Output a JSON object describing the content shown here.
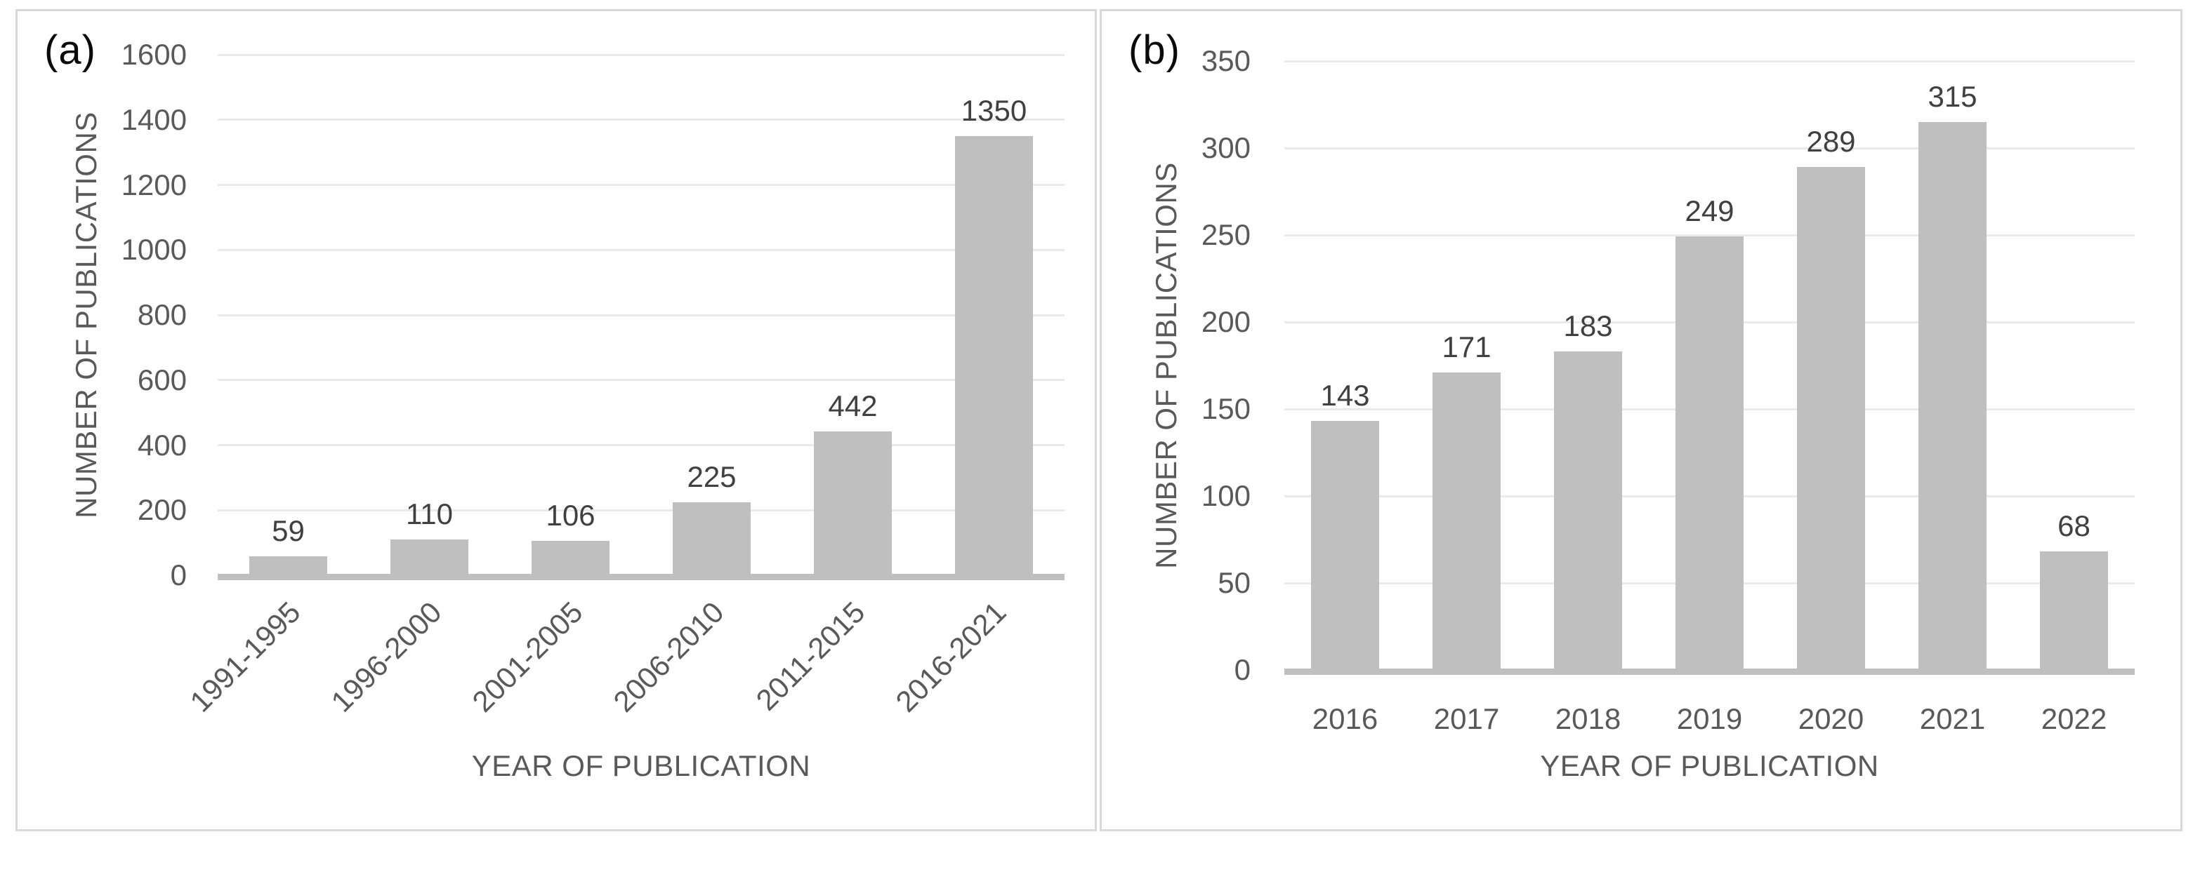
{
  "chart_data": [
    {
      "type": "bar",
      "panel_label": "(a)",
      "categories": [
        "1991-1995",
        "1996-2000",
        "2001-2005",
        "2006-2010",
        "2011-2015",
        "2016-2021"
      ],
      "values": [
        59,
        110,
        106,
        225,
        442,
        1350
      ],
      "title": "",
      "xlabel": "YEAR OF PUBLICATION",
      "ylabel": "NUMBER OF PUBLICATIONS",
      "ylim": [
        0,
        1600
      ],
      "ytick_step": 200,
      "yticks": [
        0,
        200,
        400,
        600,
        800,
        1000,
        1200,
        1400,
        1600
      ],
      "grid": true,
      "legend": "none",
      "category_label_rotation_deg": -45,
      "bar_color": "#bfbfbf"
    },
    {
      "type": "bar",
      "panel_label": "(b)",
      "categories": [
        "2016",
        "2017",
        "2018",
        "2019",
        "2020",
        "2021",
        "2022"
      ],
      "values": [
        143,
        171,
        183,
        249,
        289,
        315,
        68
      ],
      "title": "",
      "xlabel": "YEAR OF PUBLICATION",
      "ylabel": "NUMBER OF PUBLICATIONS",
      "ylim": [
        0,
        350
      ],
      "ytick_step": 50,
      "yticks": [
        0,
        50,
        100,
        150,
        200,
        250,
        300,
        350
      ],
      "grid": true,
      "legend": "none",
      "category_label_rotation_deg": 0,
      "bar_color": "#bfbfbf"
    }
  ],
  "colors": {
    "bar": "#bfbfbf",
    "gridline": "#eaeaea",
    "axis_line": "#bfbfbf",
    "panel_border": "#d9d9d9",
    "tick_text": "#595959",
    "value_label_text": "#404040",
    "panel_label_text": "#0a0a0a",
    "background": "#ffffff"
  }
}
